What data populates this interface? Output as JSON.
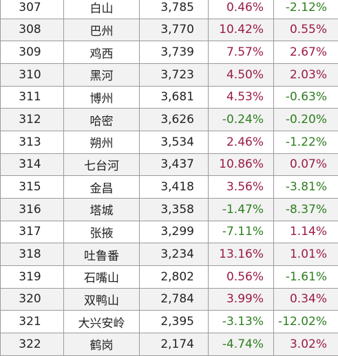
{
  "colors": {
    "positive": "#9a1b45",
    "negative": "#2e7d1f",
    "grid": "#9a9a9a",
    "text": "#222222"
  },
  "rows": [
    {
      "rank": "307",
      "city": "白山",
      "pop": "3,785",
      "g1": "0.46%",
      "g2": "-2.12%"
    },
    {
      "rank": "308",
      "city": "巴州",
      "pop": "3,770",
      "g1": "10.42%",
      "g2": "0.55%"
    },
    {
      "rank": "309",
      "city": "鸡西",
      "pop": "3,739",
      "g1": "7.57%",
      "g2": "2.67%"
    },
    {
      "rank": "310",
      "city": "黑河",
      "pop": "3,723",
      "g1": "4.50%",
      "g2": "2.03%"
    },
    {
      "rank": "311",
      "city": "博州",
      "pop": "3,681",
      "g1": "4.53%",
      "g2": "-0.63%"
    },
    {
      "rank": "312",
      "city": "哈密",
      "pop": "3,626",
      "g1": "-0.24%",
      "g2": "-0.20%"
    },
    {
      "rank": "313",
      "city": "朔州",
      "pop": "3,534",
      "g1": "2.46%",
      "g2": "-1.22%"
    },
    {
      "rank": "314",
      "city": "七台河",
      "pop": "3,437",
      "g1": "10.86%",
      "g2": "0.07%"
    },
    {
      "rank": "315",
      "city": "金昌",
      "pop": "3,418",
      "g1": "3.56%",
      "g2": "-3.81%"
    },
    {
      "rank": "316",
      "city": "塔城",
      "pop": "3,358",
      "g1": "-1.47%",
      "g2": "-8.37%"
    },
    {
      "rank": "317",
      "city": "张掖",
      "pop": "3,299",
      "g1": "-7.11%",
      "g2": "1.14%"
    },
    {
      "rank": "318",
      "city": "吐鲁番",
      "pop": "3,234",
      "g1": "13.16%",
      "g2": "1.01%"
    },
    {
      "rank": "319",
      "city": "石嘴山",
      "pop": "2,802",
      "g1": "0.56%",
      "g2": "-1.61%"
    },
    {
      "rank": "320",
      "city": "双鸭山",
      "pop": "2,784",
      "g1": "3.99%",
      "g2": "0.34%"
    },
    {
      "rank": "321",
      "city": "大兴安岭",
      "pop": "2,395",
      "g1": "-3.13%",
      "g2": "-12.02%"
    },
    {
      "rank": "322",
      "city": "鹤岗",
      "pop": "2,174",
      "g1": "-4.74%",
      "g2": "3.02%"
    }
  ]
}
